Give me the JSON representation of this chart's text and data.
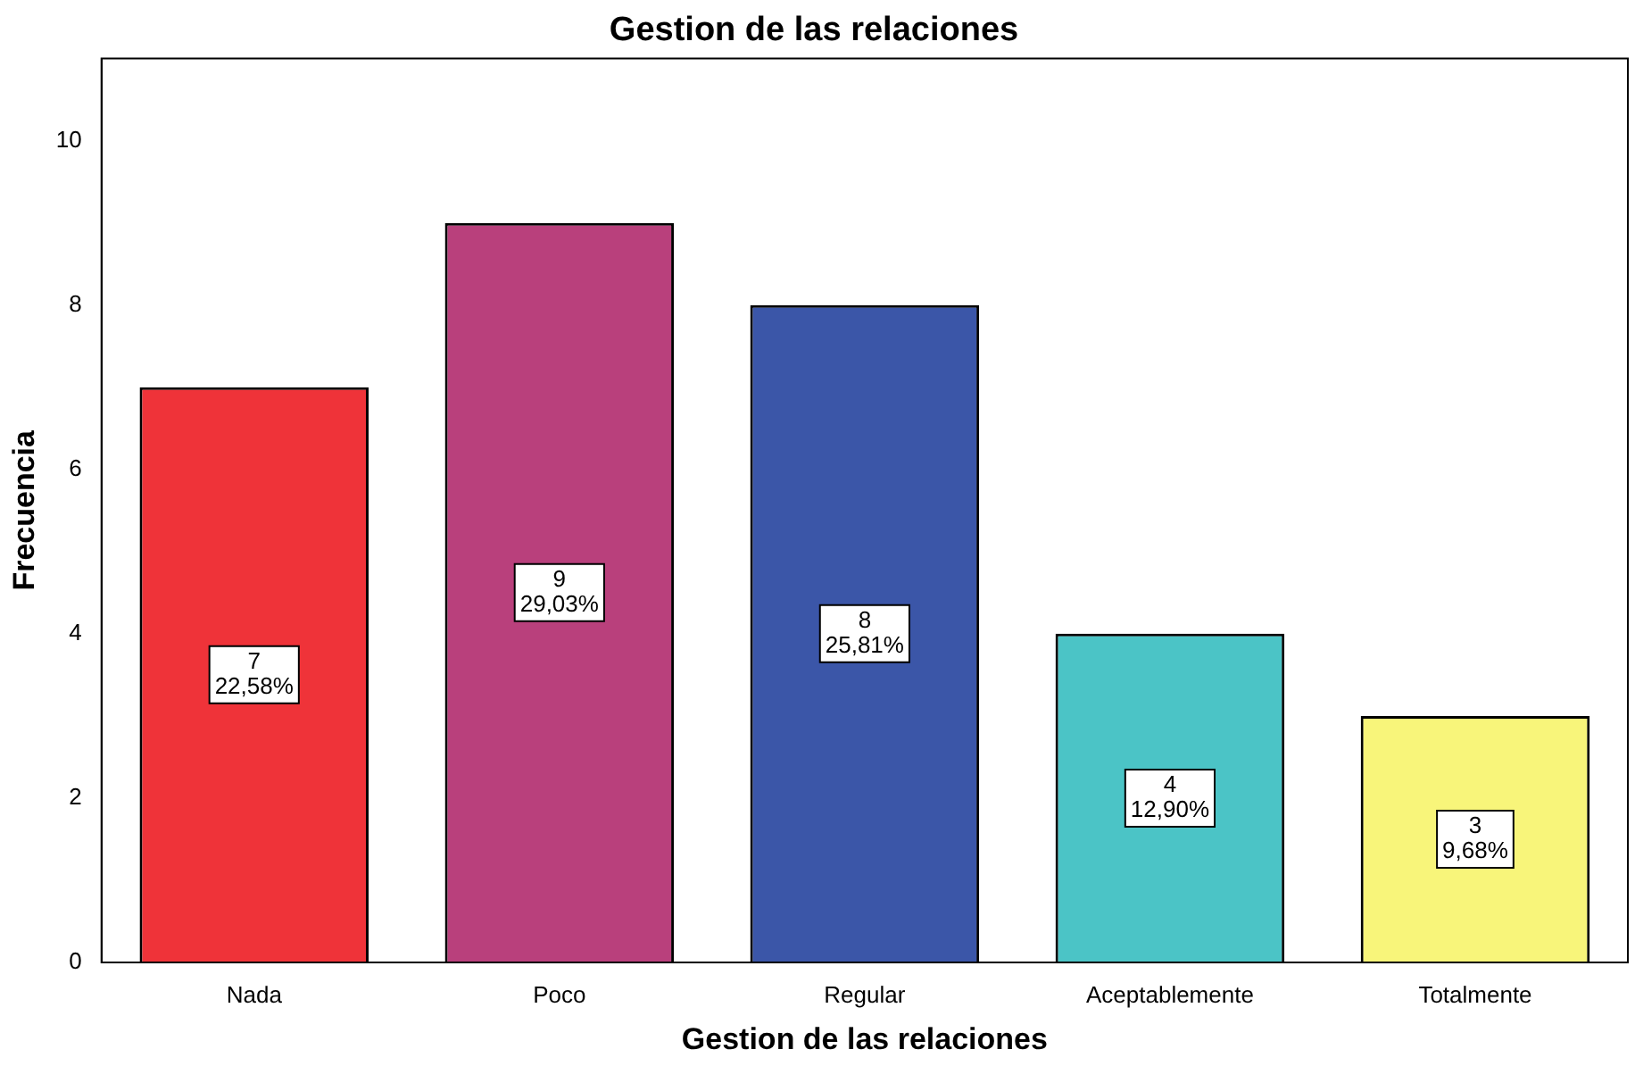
{
  "chart_data": {
    "type": "bar",
    "title": "Gestion de las relaciones",
    "xlabel": "Gestion de las relaciones",
    "ylabel": "Frecuencia",
    "categories": [
      "Nada",
      "Poco",
      "Regular",
      "Aceptablemente",
      "Totalmente"
    ],
    "values": [
      7,
      9,
      8,
      4,
      3
    ],
    "colors": [
      "#ef3339",
      "#b9407c",
      "#3b56a8",
      "#4bc4c6",
      "#f8f57a"
    ],
    "value_labels": [
      "7\n22,58%",
      "9\n29,03%",
      "8\n25,81%",
      "4\n12,90%",
      "3\n9,68%"
    ],
    "ylim": [
      0,
      11
    ],
    "yticks": [
      0,
      2,
      4,
      6,
      8,
      10
    ],
    "grid": false,
    "legend": false
  }
}
